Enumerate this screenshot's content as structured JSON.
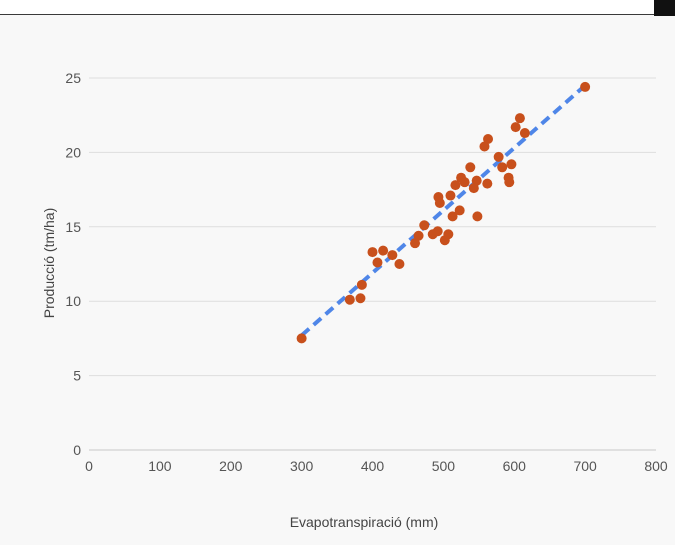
{
  "chart_data": {
    "type": "scatter",
    "title": "",
    "xlabel": "Evapotranspiració (mm)",
    "ylabel": "Producció (tm/ha)",
    "xlim": [
      0,
      800
    ],
    "ylim": [
      0,
      25
    ],
    "x_ticks": [
      0,
      100,
      200,
      300,
      400,
      500,
      600,
      700,
      800
    ],
    "y_ticks": [
      0,
      5,
      10,
      15,
      20,
      25
    ],
    "grid": "horizontal",
    "legend": "none",
    "point_color": "#c8501c",
    "trendline_color": "#4f86e8",
    "trendline": {
      "x": [
        300,
        700
      ],
      "y": [
        7.7,
        24.5
      ],
      "style": "dashed"
    },
    "points": [
      {
        "x": 300,
        "y": 7.5
      },
      {
        "x": 368,
        "y": 10.1
      },
      {
        "x": 383,
        "y": 10.2
      },
      {
        "x": 385,
        "y": 11.1
      },
      {
        "x": 400,
        "y": 13.3
      },
      {
        "x": 407,
        "y": 12.6
      },
      {
        "x": 415,
        "y": 13.4
      },
      {
        "x": 428,
        "y": 13.1
      },
      {
        "x": 438,
        "y": 12.5
      },
      {
        "x": 460,
        "y": 13.9
      },
      {
        "x": 465,
        "y": 14.4
      },
      {
        "x": 473,
        "y": 15.1
      },
      {
        "x": 485,
        "y": 14.5
      },
      {
        "x": 492,
        "y": 14.7
      },
      {
        "x": 493,
        "y": 17.0
      },
      {
        "x": 495,
        "y": 16.6
      },
      {
        "x": 502,
        "y": 14.1
      },
      {
        "x": 507,
        "y": 14.5
      },
      {
        "x": 510,
        "y": 17.1
      },
      {
        "x": 513,
        "y": 15.7
      },
      {
        "x": 517,
        "y": 17.8
      },
      {
        "x": 523,
        "y": 16.1
      },
      {
        "x": 525,
        "y": 18.3
      },
      {
        "x": 530,
        "y": 18.0
      },
      {
        "x": 538,
        "y": 19.0
      },
      {
        "x": 543,
        "y": 17.6
      },
      {
        "x": 547,
        "y": 18.1
      },
      {
        "x": 548,
        "y": 15.7
      },
      {
        "x": 558,
        "y": 20.4
      },
      {
        "x": 562,
        "y": 17.9
      },
      {
        "x": 563,
        "y": 20.9
      },
      {
        "x": 578,
        "y": 19.7
      },
      {
        "x": 583,
        "y": 19.0
      },
      {
        "x": 592,
        "y": 18.3
      },
      {
        "x": 593,
        "y": 18.0
      },
      {
        "x": 596,
        "y": 19.2
      },
      {
        "x": 602,
        "y": 21.7
      },
      {
        "x": 608,
        "y": 22.3
      },
      {
        "x": 615,
        "y": 21.3
      },
      {
        "x": 700,
        "y": 24.4
      }
    ]
  }
}
